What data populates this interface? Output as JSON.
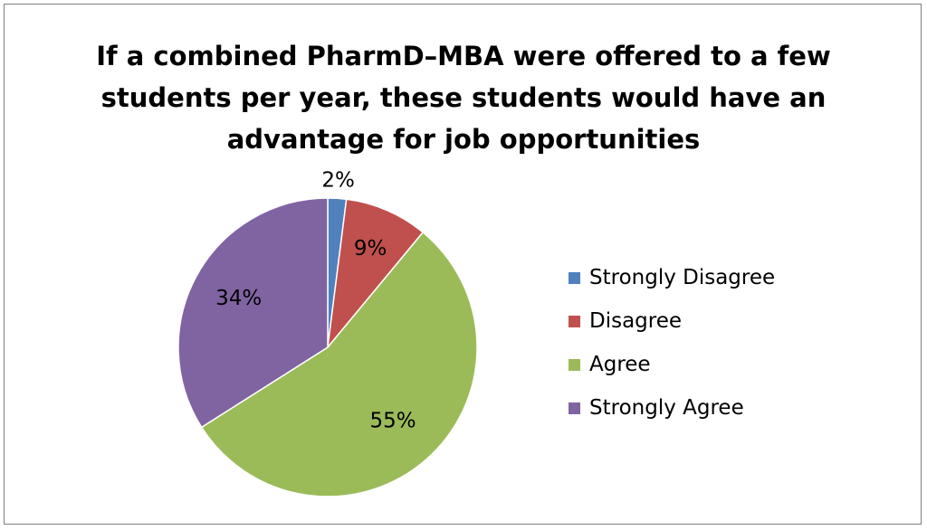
{
  "chart_data": {
    "type": "pie",
    "title_lines": [
      "If a combined PharmD–MBA were offered to a few",
      "students per year, these students would have an",
      "advantage for job opportunities"
    ],
    "categories": [
      "Strongly Disagree",
      "Disagree",
      "Agree",
      "Strongly Agree"
    ],
    "values": [
      2,
      9,
      55,
      34
    ],
    "data_labels": [
      "2%",
      "9%",
      "55%",
      "34%"
    ],
    "colors": [
      "#4f81bd",
      "#c0504d",
      "#9bbb59",
      "#8064a2"
    ],
    "legend_position": "right"
  }
}
